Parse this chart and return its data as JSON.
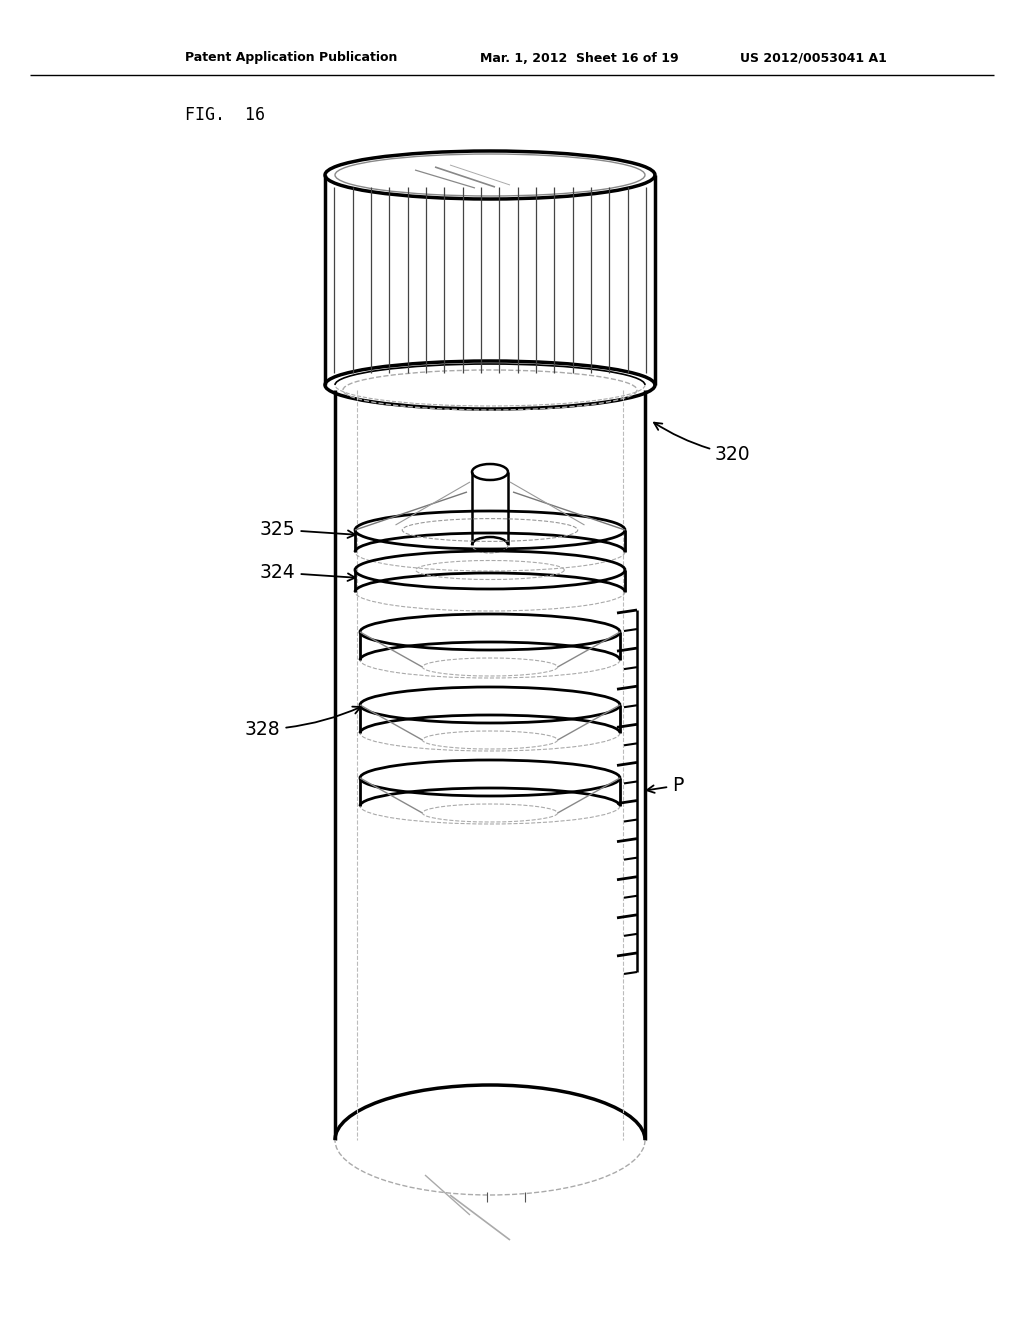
{
  "bg_color": "#ffffff",
  "line_color": "#000000",
  "header_text1": "Patent Application Publication",
  "header_text2": "Mar. 1, 2012  Sheet 16 of 19",
  "header_text3": "US 2012/0053041 A1",
  "fig_label": "FIG. 16"
}
